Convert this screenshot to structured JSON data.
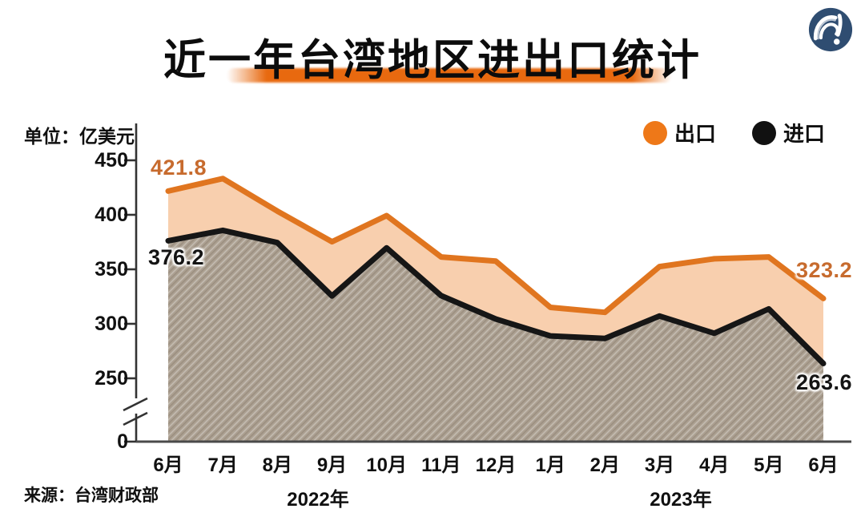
{
  "page": {
    "title": "近一年台湾地区进出口统计",
    "unit_label": "单位：亿美元",
    "source_label": "来源：台湾财政部"
  },
  "annotations": {
    "export_first": "421.8",
    "import_first": "376.2",
    "export_last": "323.2",
    "import_last": "263.6"
  },
  "colors": {
    "export_line": "#e0751f",
    "import_line": "#161616",
    "between_area": "#f8cfae",
    "import_area_base": "#ab9f90",
    "legend_export_dot": "#ee7818",
    "legend_import_dot": "#111111",
    "annotation_orange": "#c76b2e",
    "title_underline": "#e8690f",
    "logo_navy": "#2f4d71",
    "axis": "#333333"
  },
  "icons": {
    "logo": "observer-wave-exclamation-logo",
    "legend_export": "orange-dot-icon",
    "legend_import": "black-dot-icon"
  },
  "chart_data": {
    "type": "area",
    "title": "近一年台湾地区进出口统计",
    "ylabel": "亿美元",
    "categories": [
      "6月",
      "7月",
      "8月",
      "9月",
      "10月",
      "11月",
      "12月",
      "1月",
      "2月",
      "3月",
      "4月",
      "5月",
      "6月"
    ],
    "x_group_labels": [
      "2022年",
      "2023年"
    ],
    "series": [
      {
        "name": "出口",
        "color": "#e0751f",
        "values": [
          421.8,
          433.2,
          403.4,
          375.3,
          399.3,
          361.3,
          357.5,
          315.1,
          310.5,
          352.5,
          359.6,
          361.3,
          323.2
        ]
      },
      {
        "name": "进口",
        "color": "#161616",
        "values": [
          376.2,
          385.7,
          374.5,
          325.5,
          369.6,
          325.8,
          304.4,
          288.9,
          286.6,
          307.1,
          291.3,
          313.7,
          263.6
        ]
      }
    ],
    "labeled_points": {
      "出口": {
        "2022-6月": 421.8,
        "2023-6月": 323.2
      },
      "进口": {
        "2022-6月": 376.2,
        "2023-6月": 263.6
      }
    },
    "y_axis_ticks": [
      450,
      400,
      350,
      300,
      250,
      0
    ],
    "axis_break_between": [
      0,
      250
    ],
    "ylim_display": [
      250,
      450
    ],
    "grid": false,
    "legend_position": "top-right"
  }
}
